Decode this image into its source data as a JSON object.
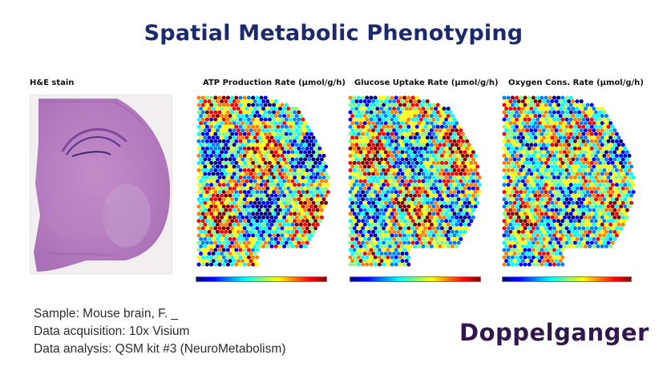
{
  "title": "Spatial Metabolic Phenotyping",
  "panels": {
    "he": {
      "label": "H&E stain"
    },
    "atp": {
      "label": "ATP Production Rate (µmol/g/h)"
    },
    "glucose": {
      "label": "Glucose Uptake Rate (µmol/g/h)"
    },
    "oxygen": {
      "label": "Oxygen Cons. Rate (µmol/g/h)"
    }
  },
  "colormap": [
    "#00007f",
    "#0000ff",
    "#0080ff",
    "#00ffff",
    "#80ff80",
    "#ffff00",
    "#ff8000",
    "#ff0000",
    "#7f0000"
  ],
  "info": {
    "sample": "Sample: Mouse brain, F. _",
    "acquisition": "Data acquisition: 10x Visium",
    "analysis": "Data analysis: QSM kit #3 (NeuroMetabolism)"
  },
  "logo": "Doppelganger"
}
